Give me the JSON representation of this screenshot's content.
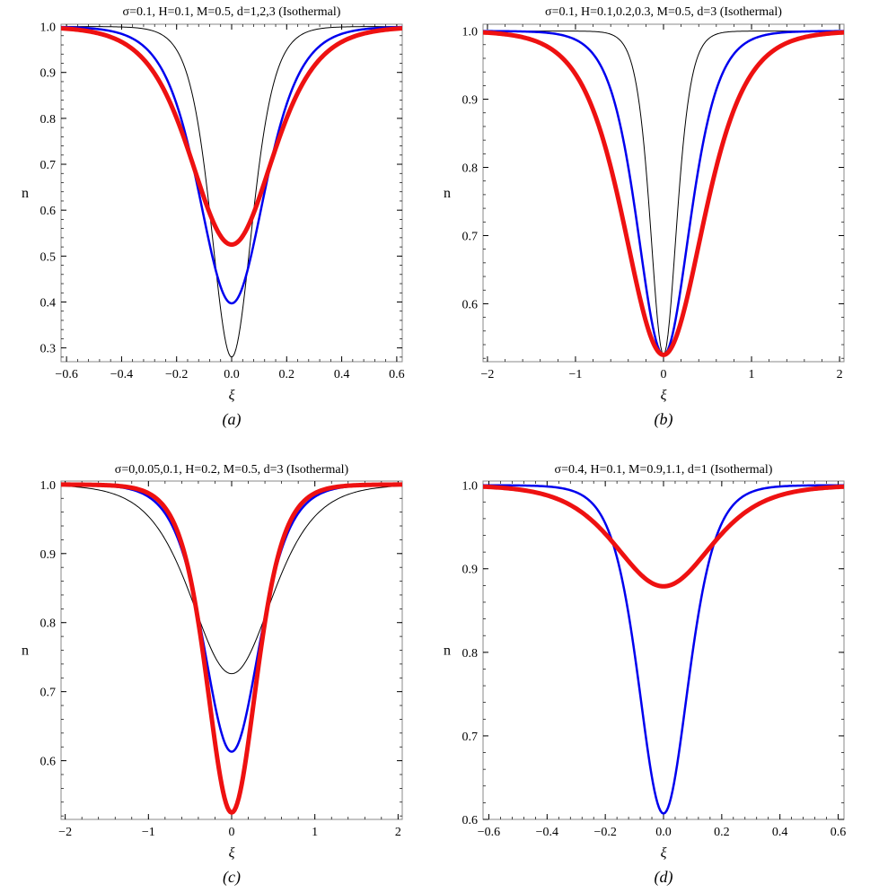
{
  "chart_data": [
    {
      "type": "line",
      "title": "σ=0.1, H=0.1, M=0.5, d=1,2,3 (Isothermal)",
      "xlabel": "ξ",
      "ylabel": "n",
      "caption": "(a)",
      "xlim": [
        -0.62,
        0.62
      ],
      "ylim": [
        0.27,
        1.005
      ],
      "xticks": [
        -0.6,
        -0.4,
        -0.2,
        0.0,
        0.2,
        0.4,
        0.6
      ],
      "xtick_labels": [
        "−0.6",
        "−0.4",
        "−0.2",
        "0.0",
        "0.2",
        "0.4",
        "0.6"
      ],
      "yticks": [
        0.3,
        0.4,
        0.5,
        0.6,
        0.7,
        0.8,
        0.9,
        1.0
      ],
      "ytick_labels": [
        "0.3",
        "0.4",
        "0.5",
        "0.6",
        "0.7",
        "0.8",
        "0.9",
        "1.0"
      ],
      "series": [
        {
          "color": "#000000",
          "width": 1,
          "min": 0.28,
          "w": 0.1
        },
        {
          "color": "#0000ee",
          "width": 2.5,
          "min": 0.397,
          "w": 0.16
        },
        {
          "color": "#ee1111",
          "width": 5,
          "min": 0.525,
          "w": 0.2
        }
      ]
    },
    {
      "type": "line",
      "title": "σ=0.1, H=0.1,0.2,0.3, M=0.5, d=3 (Isothermal)",
      "xlabel": "ξ",
      "ylabel": "n",
      "caption": "(b)",
      "xlim": [
        -2.05,
        2.05
      ],
      "ylim": [
        0.515,
        1.01
      ],
      "xticks": [
        -2,
        -1,
        0,
        1,
        2
      ],
      "xtick_labels": [
        "−2",
        "−1",
        "0",
        "1",
        "2"
      ],
      "yticks": [
        0.6,
        0.7,
        0.8,
        0.9,
        1.0
      ],
      "ytick_labels": [
        "0.6",
        "0.7",
        "0.8",
        "0.9",
        "1.0"
      ],
      "series": [
        {
          "color": "#000000",
          "width": 1,
          "min": 0.525,
          "w": 0.2
        },
        {
          "color": "#0000ee",
          "width": 2.5,
          "min": 0.525,
          "w": 0.4
        },
        {
          "color": "#ee1111",
          "width": 5,
          "min": 0.525,
          "w": 0.6
        }
      ]
    },
    {
      "type": "line",
      "title": "σ=0,0.05,0.1, H=0.2, M=0.5, d=3 (Isothermal)",
      "xlabel": "ξ",
      "ylabel": "n",
      "caption": "(c)",
      "xlim": [
        -2.05,
        2.05
      ],
      "ylim": [
        0.515,
        1.005
      ],
      "xticks": [
        -2,
        -1,
        0,
        1,
        2
      ],
      "xtick_labels": [
        "−2",
        "−1",
        "0",
        "1",
        "2"
      ],
      "yticks": [
        0.6,
        0.7,
        0.8,
        0.9,
        1.0
      ],
      "ytick_labels": [
        "0.6",
        "0.7",
        "0.8",
        "0.9",
        "1.0"
      ],
      "series": [
        {
          "color": "#000000",
          "width": 1,
          "min": 0.726,
          "w": 0.65
        },
        {
          "color": "#0000ee",
          "width": 2.5,
          "min": 0.613,
          "w": 0.45
        },
        {
          "color": "#ee1111",
          "width": 5,
          "min": 0.525,
          "w": 0.4
        }
      ]
    },
    {
      "type": "line",
      "title": "σ=0.4, H=0.1, M=0.9,1.1, d=1 (Isothermal)",
      "xlabel": "ξ",
      "ylabel": "n",
      "caption": "(d)",
      "xlim": [
        -0.62,
        0.62
      ],
      "ylim": [
        0.6,
        1.005
      ],
      "xticks": [
        -0.6,
        -0.4,
        -0.2,
        0.0,
        0.2,
        0.4,
        0.6
      ],
      "xtick_labels": [
        "−0.6",
        "−0.4",
        "−0.2",
        "0.0",
        "0.2",
        "0.4",
        "0.6"
      ],
      "yticks": [
        0.6,
        0.7,
        0.8,
        0.9,
        1.0
      ],
      "ytick_labels": [
        "0.6",
        "0.7",
        "0.8",
        "0.9",
        "1.0"
      ],
      "series": [
        {
          "color": "#0000ee",
          "width": 2.5,
          "min": 0.607,
          "w": 0.115
        },
        {
          "color": "#ee1111",
          "width": 5,
          "min": 0.879,
          "w": 0.22
        }
      ]
    }
  ]
}
